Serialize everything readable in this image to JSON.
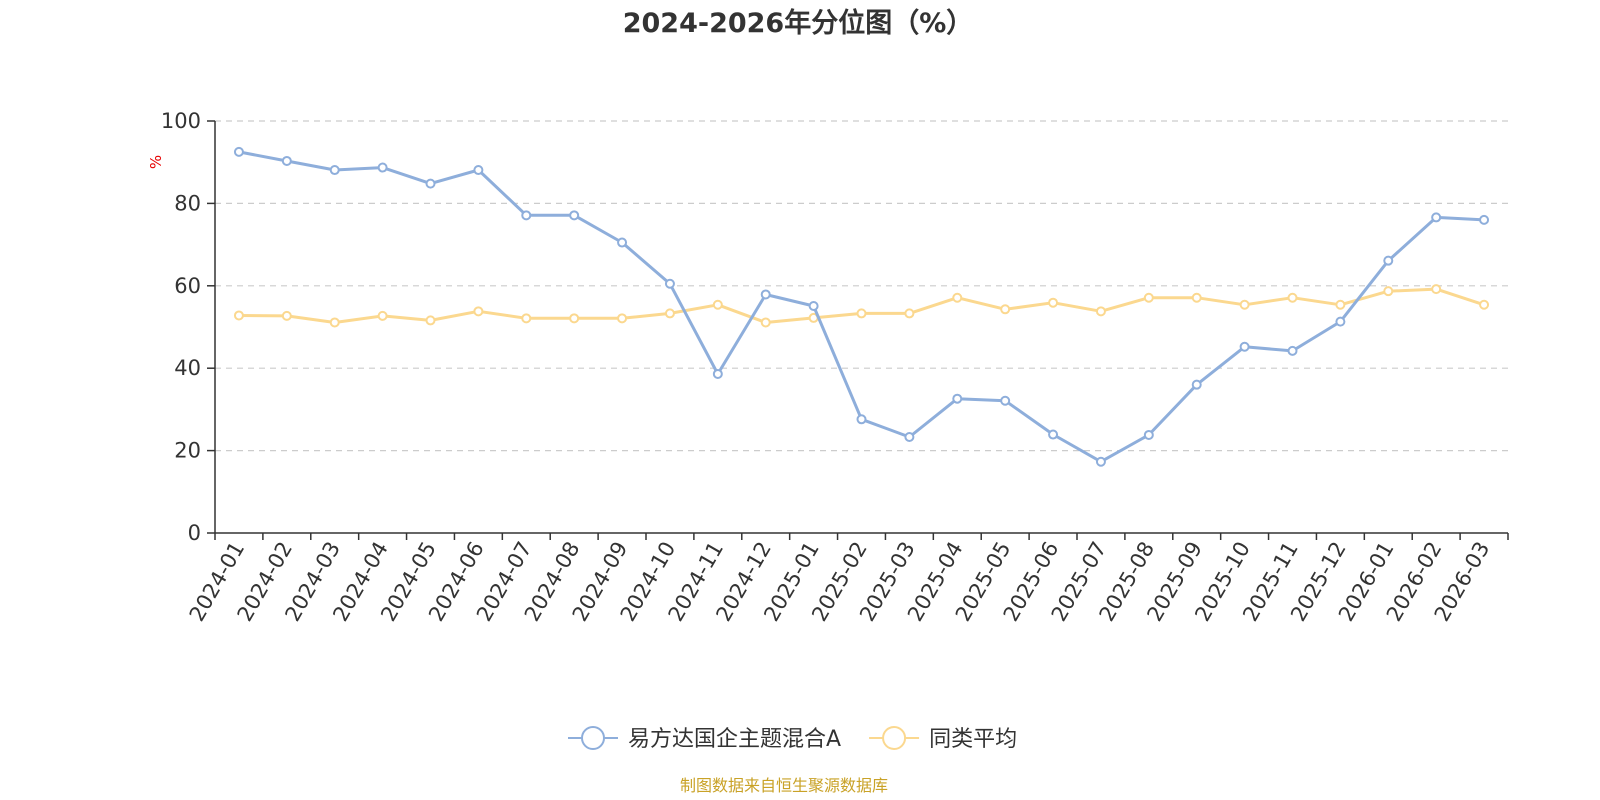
{
  "chart_data": {
    "type": "line",
    "title": "2024-2026年分位图（%）",
    "ylabel": "%",
    "xlabel": "",
    "ylim": [
      0,
      100
    ],
    "yticks": [
      0,
      20,
      40,
      60,
      80,
      100
    ],
    "grid": true,
    "legend_position": "bottom-center",
    "categories": [
      "2024-01",
      "2024-02",
      "2024-03",
      "2024-04",
      "2024-05",
      "2024-06",
      "2024-07",
      "2024-08",
      "2024-09",
      "2024-10",
      "2024-11",
      "2024-12",
      "2025-01",
      "2025-02",
      "2025-03",
      "2025-04",
      "2025-05",
      "2025-06",
      "2025-07",
      "2025-08",
      "2025-09",
      "2025-10",
      "2025-11",
      "2025-12",
      "2026-01",
      "2026-02",
      "2026-03"
    ],
    "series": [
      {
        "name": "易方达国企主题混合A",
        "color": "#8eaedb",
        "values": [
          92.5,
          90.3,
          88.1,
          88.7,
          84.8,
          88.1,
          77.1,
          77.1,
          70.5,
          60.5,
          38.6,
          57.9,
          55.1,
          27.6,
          23.3,
          32.6,
          32.1,
          23.9,
          17.3,
          23.8,
          36.0,
          45.2,
          44.2,
          51.3,
          66.1,
          76.6,
          76.0
        ]
      },
      {
        "name": "同类平均",
        "color": "#fbd88f",
        "values": [
          52.8,
          52.7,
          51.1,
          52.7,
          51.6,
          53.8,
          52.1,
          52.1,
          52.1,
          53.3,
          55.4,
          51.1,
          52.2,
          53.3,
          53.3,
          57.1,
          54.3,
          55.9,
          53.8,
          57.1,
          57.1,
          55.4,
          57.1,
          55.4,
          58.7,
          59.2,
          55.4
        ]
      }
    ]
  },
  "source": {
    "text": "制图数据来自恒生聚源数据库",
    "color": "#c9a227"
  },
  "colors": {
    "axis": "#333333",
    "grid": "#cccccc",
    "unit": "#e60000"
  }
}
